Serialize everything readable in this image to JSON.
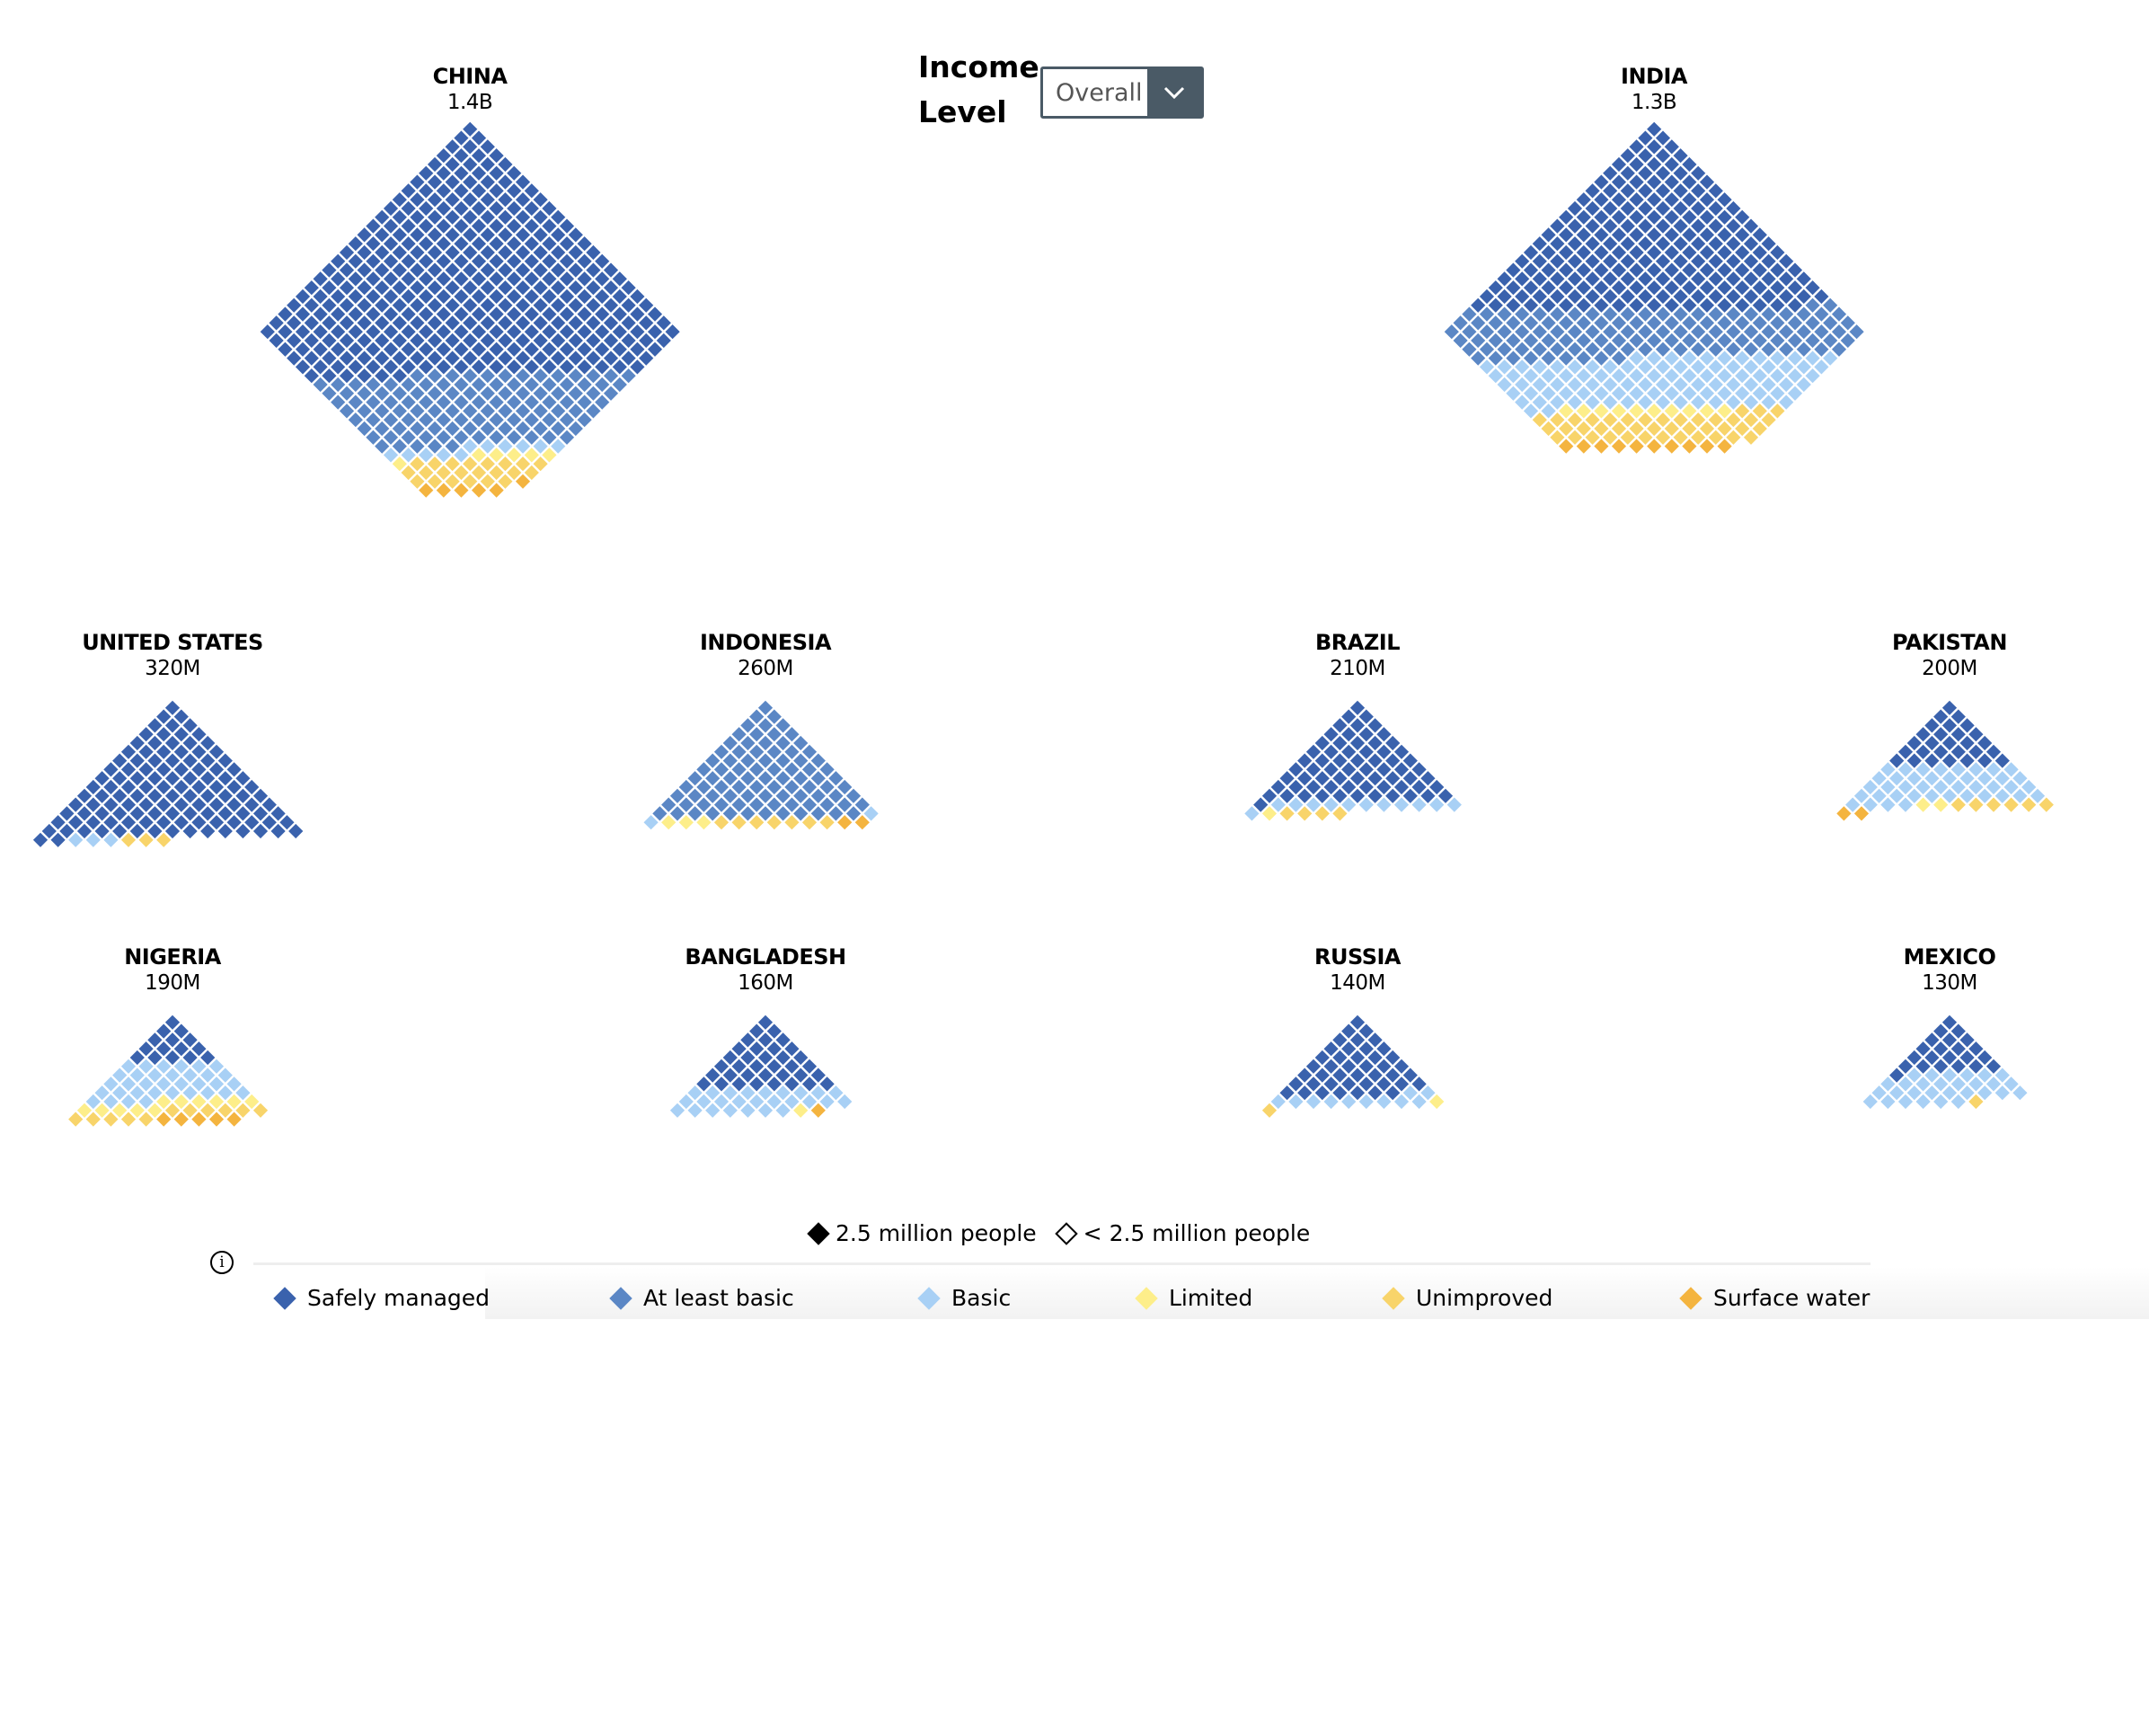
{
  "filter": {
    "label": "Income Level",
    "selected": "Overall"
  },
  "size_legend": {
    "full": "2.5 million people",
    "partial": "< 2.5 million people"
  },
  "categories": [
    {
      "name": "Safely managed",
      "color": "#3a62ad"
    },
    {
      "name": "At least basic",
      "color": "#5b87c5"
    },
    {
      "name": "Basic",
      "color": "#a8d0f5"
    },
    {
      "name": "Limited",
      "color": "#fdee8a"
    },
    {
      "name": "Unimproved",
      "color": "#f8d46a"
    },
    {
      "name": "Surface water",
      "color": "#f4b43f"
    }
  ],
  "chart_data": {
    "type": "unit-diamond",
    "unit": "2.5 million people",
    "countries": [
      {
        "name": "CHINA",
        "population": "1.4B",
        "units": 560,
        "shares": [
          70,
          22,
          2,
          1,
          4,
          1
        ]
      },
      {
        "name": "INDIA",
        "population": "1.3B",
        "units": 520,
        "shares": [
          44,
          24,
          20,
          2,
          8,
          2
        ]
      },
      {
        "name": "UNITED STATES",
        "population": "320M",
        "units": 128,
        "shares": [
          96,
          0,
          2,
          0,
          2,
          0
        ]
      },
      {
        "name": "INDONESIA",
        "population": "260M",
        "units": 104,
        "shares": [
          0,
          86,
          2,
          3,
          7,
          2
        ]
      },
      {
        "name": "BRAZIL",
        "population": "210M",
        "units": 84,
        "shares": [
          80,
          0,
          14,
          1,
          5,
          0
        ]
      },
      {
        "name": "PAKISTAN",
        "population": "200M",
        "units": 80,
        "shares": [
          35,
          0,
          53,
          2,
          7,
          3
        ]
      },
      {
        "name": "NIGERIA",
        "population": "190M",
        "units": 76,
        "shares": [
          20,
          0,
          45,
          15,
          14,
          6
        ]
      },
      {
        "name": "BANGLADESH",
        "population": "160M",
        "units": 64,
        "shares": [
          55,
          0,
          41,
          2,
          0,
          2
        ]
      },
      {
        "name": "RUSSIA",
        "population": "140M",
        "units": 56,
        "shares": [
          76,
          0,
          20,
          2,
          2,
          0
        ]
      },
      {
        "name": "MEXICO",
        "population": "130M",
        "units": 52,
        "shares": [
          43,
          0,
          56,
          0,
          1,
          0
        ]
      }
    ]
  }
}
